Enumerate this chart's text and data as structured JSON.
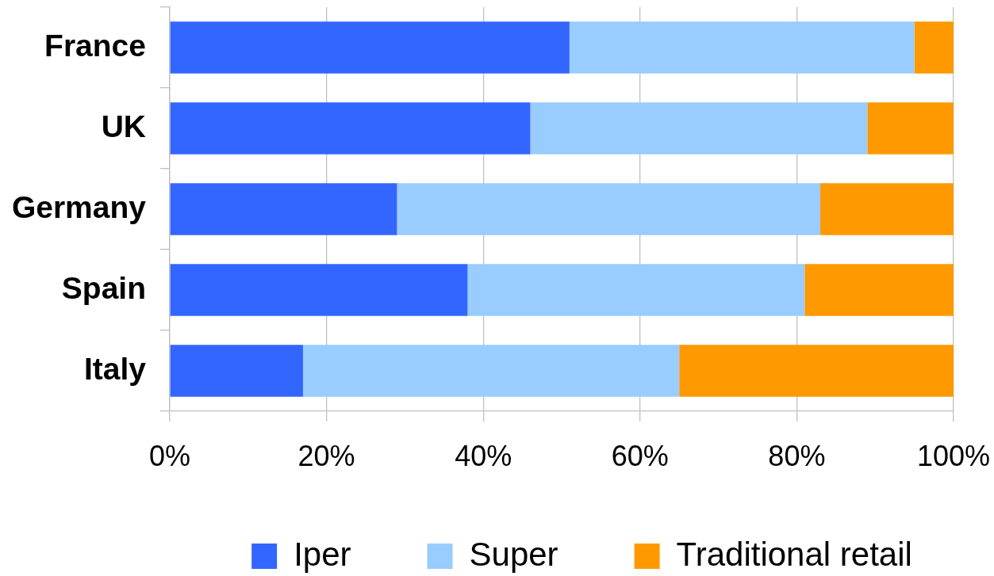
{
  "chart_data": {
    "type": "bar",
    "orientation": "horizontal",
    "stacked": true,
    "categories": [
      "France",
      "UK",
      "Germany",
      "Spain",
      "Italy"
    ],
    "series": [
      {
        "name": "Iper",
        "color": "#3366ff",
        "values": [
          51,
          46,
          29,
          38,
          17
        ]
      },
      {
        "name": "Super",
        "color": "#99ccff",
        "values": [
          44,
          43,
          54,
          43,
          48
        ]
      },
      {
        "name": "Traditional retail",
        "color": "#ff9900",
        "values": [
          5,
          11,
          17,
          19,
          35
        ]
      }
    ],
    "xlim": [
      0,
      100
    ],
    "xticks": [
      {
        "value": 0,
        "label": "0%"
      },
      {
        "value": 20,
        "label": "20%"
      },
      {
        "value": 40,
        "label": "40%"
      },
      {
        "value": 60,
        "label": "60%"
      },
      {
        "value": 80,
        "label": "80%"
      },
      {
        "value": 100,
        "label": "100%"
      }
    ],
    "grid": "x",
    "legend": "bottom"
  }
}
